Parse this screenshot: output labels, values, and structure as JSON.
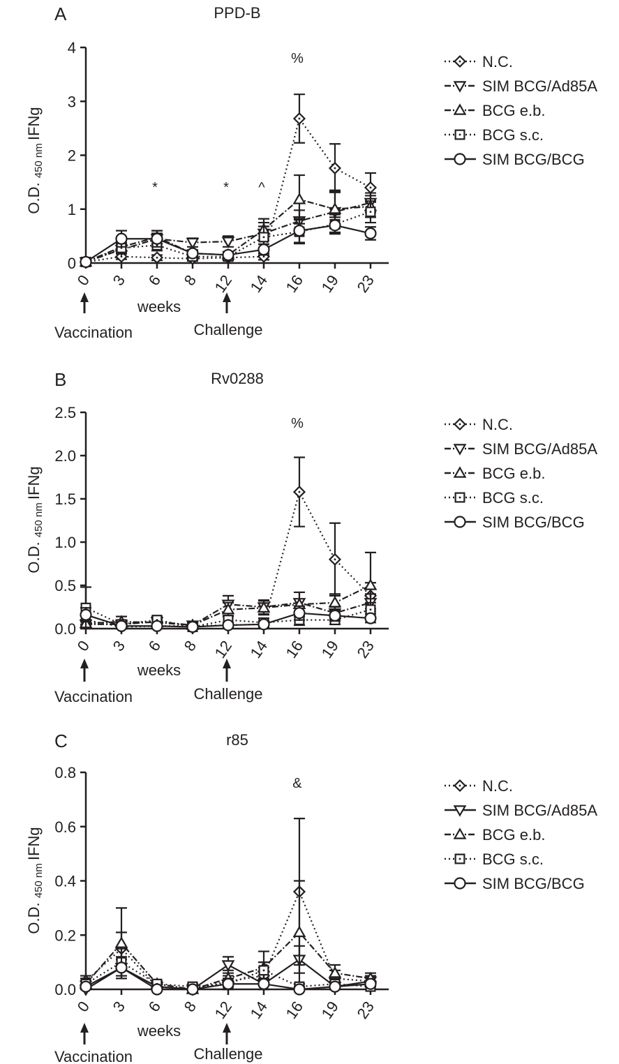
{
  "x_categories": [
    "0",
    "3",
    "6",
    "8",
    "12",
    "14",
    "16",
    "19",
    "23"
  ],
  "xlabel": "weeks",
  "ylabel_main": "O.D.",
  "ylabel_sub": "450 nm",
  "ylabel_tail": "IFNg",
  "events": [
    {
      "label": "Vaccination",
      "at": "0"
    },
    {
      "label": "Challenge",
      "at": "12"
    }
  ],
  "legend_markers": [
    "diamond",
    "triangle-down",
    "triangle-up",
    "square",
    "circle"
  ],
  "chart_data": [
    {
      "type": "line",
      "panel_letter": "A",
      "title": "PPD-B",
      "ylim": [
        0,
        4
      ],
      "yticks": [
        "0",
        "1",
        "2",
        "3",
        "4"
      ],
      "annotations": [
        {
          "text": "*",
          "at": "6"
        },
        {
          "text": "*",
          "at": "12"
        },
        {
          "text": "^",
          "at": "14"
        },
        {
          "text": "%",
          "at": "16"
        }
      ],
      "series": [
        {
          "name": "N.C.",
          "marker": "diamond",
          "dash": "dot",
          "values": [
            0.02,
            0.12,
            0.1,
            0.08,
            0.1,
            0.12,
            2.68,
            1.76,
            1.4
          ],
          "errors": [
            0.02,
            0.05,
            0.05,
            0.04,
            0.05,
            0.06,
            0.45,
            0.45,
            0.27
          ]
        },
        {
          "name": "SIM BCG/Ad85A",
          "marker": "triangle-down",
          "dash": "dashdot",
          "values": [
            0.02,
            0.25,
            0.45,
            0.38,
            0.4,
            0.55,
            0.78,
            0.95,
            1.12
          ],
          "errors": [
            0.02,
            0.08,
            0.1,
            0.08,
            0.1,
            0.2,
            0.2,
            0.38,
            0.18
          ]
        },
        {
          "name": "BCG e.b.",
          "marker": "triangle-up",
          "dash": "dashdot",
          "values": [
            0.02,
            0.3,
            0.48,
            0.18,
            0.15,
            0.62,
            1.18,
            1.0,
            1.05
          ],
          "errors": [
            0.02,
            0.08,
            0.12,
            0.06,
            0.06,
            0.2,
            0.45,
            0.35,
            0.2
          ]
        },
        {
          "name": "BCG s.c.",
          "marker": "square",
          "dash": "dot",
          "values": [
            0.02,
            0.28,
            0.33,
            0.12,
            0.12,
            0.48,
            0.58,
            0.72,
            0.95
          ],
          "errors": [
            0.02,
            0.08,
            0.1,
            0.05,
            0.05,
            0.2,
            0.22,
            0.18,
            0.2
          ]
        },
        {
          "name": "SIM BCG/BCG",
          "marker": "circle",
          "dash": "solid",
          "values": [
            0.02,
            0.45,
            0.45,
            0.18,
            0.15,
            0.25,
            0.6,
            0.7,
            0.55
          ],
          "errors": [
            0.02,
            0.15,
            0.15,
            0.06,
            0.06,
            0.1,
            0.22,
            0.15,
            0.12
          ]
        }
      ]
    },
    {
      "type": "line",
      "panel_letter": "B",
      "title": "Rv0288",
      "ylim": [
        0,
        2.5
      ],
      "yticks": [
        "0.0",
        "0.5",
        "1.0",
        "1.5",
        "2.0",
        "2.5"
      ],
      "annotations": [
        {
          "text": "%",
          "at": "16"
        }
      ],
      "series": [
        {
          "name": "N.C.",
          "marker": "diamond",
          "dash": "dot",
          "values": [
            0.1,
            0.02,
            0.03,
            0.03,
            0.04,
            0.05,
            1.58,
            0.8,
            0.38
          ],
          "errors": [
            0.05,
            0.02,
            0.02,
            0.02,
            0.03,
            0.03,
            0.4,
            0.42,
            0.15
          ]
        },
        {
          "name": "SIM BCG/Ad85A",
          "marker": "triangle-down",
          "dash": "dashdot",
          "values": [
            0.05,
            0.05,
            0.08,
            0.04,
            0.28,
            0.25,
            0.3,
            0.18,
            0.3
          ],
          "errors": [
            0.03,
            0.04,
            0.04,
            0.03,
            0.1,
            0.08,
            0.12,
            0.07,
            0.1
          ]
        },
        {
          "name": "BCG e.b.",
          "marker": "triangle-up",
          "dash": "dashdot",
          "values": [
            0.06,
            0.08,
            0.07,
            0.04,
            0.22,
            0.24,
            0.28,
            0.3,
            0.5
          ],
          "errors": [
            0.03,
            0.06,
            0.04,
            0.03,
            0.08,
            0.08,
            0.14,
            0.1,
            0.38
          ]
        },
        {
          "name": "BCG s.c.",
          "marker": "square",
          "dash": "dot",
          "values": [
            0.24,
            0.05,
            0.1,
            0.02,
            0.1,
            0.07,
            0.1,
            0.1,
            0.22
          ],
          "errors": [
            0.24,
            0.03,
            0.04,
            0.02,
            0.05,
            0.05,
            0.06,
            0.05,
            0.08
          ]
        },
        {
          "name": "SIM BCG/BCG",
          "marker": "circle",
          "dash": "solid",
          "values": [
            0.16,
            0.03,
            0.03,
            0.02,
            0.04,
            0.05,
            0.18,
            0.15,
            0.12
          ],
          "errors": [
            0.08,
            0.03,
            0.02,
            0.02,
            0.03,
            0.04,
            0.08,
            0.06,
            0.05
          ]
        }
      ]
    },
    {
      "type": "line",
      "panel_letter": "C",
      "title": "r85",
      "ylim": [
        0,
        0.8
      ],
      "yticks": [
        "0.0",
        "0.2",
        "0.4",
        "0.6",
        "0.8"
      ],
      "annotations": [
        {
          "text": "&",
          "at": "16"
        }
      ],
      "series": [
        {
          "name": "N.C.",
          "marker": "diamond",
          "dash": "dot",
          "values": [
            0.03,
            0.15,
            0.01,
            0.0,
            0.03,
            0.05,
            0.36,
            0.04,
            0.03
          ],
          "errors": [
            0.02,
            0.06,
            0.01,
            0.01,
            0.02,
            0.03,
            0.27,
            0.03,
            0.02
          ]
        },
        {
          "name": "SIM BCG/Ad85A",
          "marker": "triangle-down",
          "dash": "solid",
          "values": [
            0.0,
            0.08,
            0.01,
            0.0,
            0.09,
            0.02,
            0.11,
            0.01,
            0.03
          ],
          "errors": [
            0.01,
            0.03,
            0.01,
            0.01,
            0.03,
            0.02,
            0.05,
            0.01,
            0.02
          ]
        },
        {
          "name": "BCG e.b.",
          "marker": "triangle-up",
          "dash": "dashdot",
          "values": [
            0.02,
            0.17,
            0.02,
            0.0,
            0.04,
            0.08,
            0.21,
            0.06,
            0.04
          ],
          "errors": [
            0.02,
            0.13,
            0.01,
            0.01,
            0.03,
            0.06,
            0.19,
            0.03,
            0.02
          ]
        },
        {
          "name": "BCG s.c.",
          "marker": "square",
          "dash": "dot",
          "values": [
            0.02,
            0.1,
            0.02,
            0.01,
            0.02,
            0.07,
            0.01,
            0.02,
            0.01
          ],
          "errors": [
            0.02,
            0.05,
            0.01,
            0.01,
            0.02,
            0.03,
            0.01,
            0.02,
            0.01
          ]
        },
        {
          "name": "SIM BCG/BCG",
          "marker": "circle",
          "dash": "solid",
          "values": [
            0.01,
            0.08,
            0.0,
            0.0,
            0.02,
            0.02,
            0.0,
            0.01,
            0.02
          ],
          "errors": [
            0.01,
            0.04,
            0.01,
            0.01,
            0.02,
            0.02,
            0.01,
            0.01,
            0.01
          ]
        }
      ]
    }
  ]
}
